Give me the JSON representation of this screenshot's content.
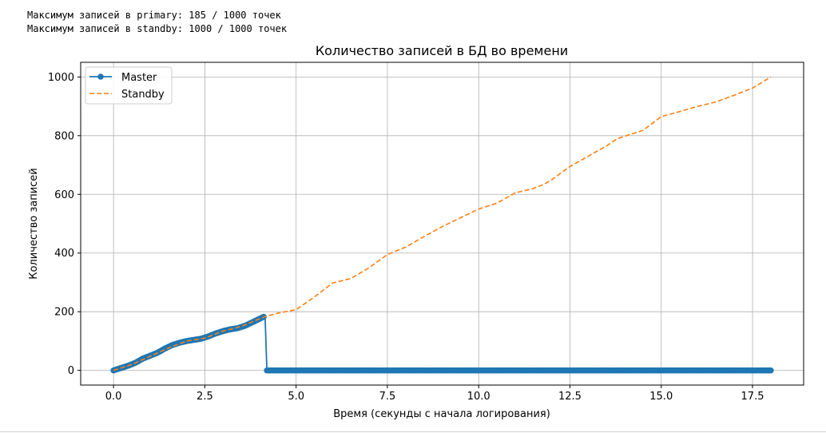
{
  "info_lines": {
    "primary": "Максимум записей в primary: 185 / 1000 точек",
    "standby": "Максимум записей в standby: 1000 / 1000 точек"
  },
  "chart_data": {
    "type": "line",
    "title": "Количество записей в БД во времени",
    "xlabel": "Время (секунды с начала логирования)",
    "ylabel": "Количество записей",
    "xlim": [
      -0.9,
      18.9
    ],
    "ylim": [
      -50,
      1050
    ],
    "xticks": [
      0.0,
      2.5,
      5.0,
      7.5,
      10.0,
      12.5,
      15.0,
      17.5
    ],
    "xtick_labels": [
      "0.0",
      "2.5",
      "5.0",
      "7.5",
      "10.0",
      "12.5",
      "15.0",
      "17.5"
    ],
    "yticks": [
      0,
      200,
      400,
      600,
      800,
      1000
    ],
    "ytick_labels": [
      "0",
      "200",
      "400",
      "600",
      "800",
      "1000"
    ],
    "grid": true,
    "legend_position": "top-left",
    "series": [
      {
        "name": "Master",
        "style": "solid-with-markers",
        "color": "#1f77b4",
        "x": [
          0.0,
          0.2,
          0.4,
          0.6,
          0.8,
          1.0,
          1.2,
          1.4,
          1.6,
          1.8,
          2.0,
          2.2,
          2.4,
          2.6,
          2.8,
          3.0,
          3.2,
          3.4,
          3.6,
          3.8,
          4.0,
          4.15,
          4.2,
          4.4,
          4.8,
          5.2,
          5.6,
          6.0,
          6.4,
          6.8,
          7.2,
          7.6,
          8.0,
          8.4,
          8.8,
          9.2,
          9.6,
          10.0,
          10.4,
          10.8,
          11.2,
          11.6,
          12.0,
          12.4,
          12.8,
          13.2,
          13.6,
          14.0,
          14.4,
          14.8,
          15.2,
          15.6,
          16.0,
          16.4,
          16.8,
          17.2,
          17.6,
          18.0
        ],
        "y": [
          0,
          8,
          16,
          26,
          40,
          50,
          60,
          74,
          86,
          94,
          100,
          104,
          108,
          116,
          126,
          134,
          140,
          144,
          152,
          164,
          176,
          185,
          0,
          0,
          0,
          0,
          0,
          0,
          0,
          0,
          0,
          0,
          0,
          0,
          0,
          0,
          0,
          0,
          0,
          0,
          0,
          0,
          0,
          0,
          0,
          0,
          0,
          0,
          0,
          0,
          0,
          0,
          0,
          0,
          0,
          0,
          0,
          0
        ]
      },
      {
        "name": "Standby",
        "style": "dashed",
        "color": "#ff7f0e",
        "x": [
          0.0,
          0.5,
          1.0,
          1.5,
          2.0,
          2.5,
          3.0,
          3.5,
          4.0,
          4.2,
          4.5,
          5.0,
          5.5,
          6.0,
          6.5,
          7.0,
          7.5,
          7.7,
          8.0,
          8.5,
          9.0,
          9.5,
          10.0,
          10.5,
          11.0,
          11.5,
          11.8,
          12.0,
          12.5,
          13.0,
          13.5,
          13.8,
          14.0,
          14.5,
          15.0,
          15.5,
          16.0,
          16.5,
          17.0,
          17.5,
          18.0
        ],
        "y": [
          0,
          20,
          48,
          76,
          100,
          110,
          134,
          150,
          176,
          185,
          195,
          207,
          250,
          298,
          313,
          350,
          395,
          405,
          420,
          456,
          490,
          520,
          550,
          570,
          605,
          620,
          635,
          650,
          695,
          730,
          765,
          790,
          798,
          818,
          865,
          882,
          900,
          915,
          938,
          962,
          1000
        ]
      }
    ]
  }
}
